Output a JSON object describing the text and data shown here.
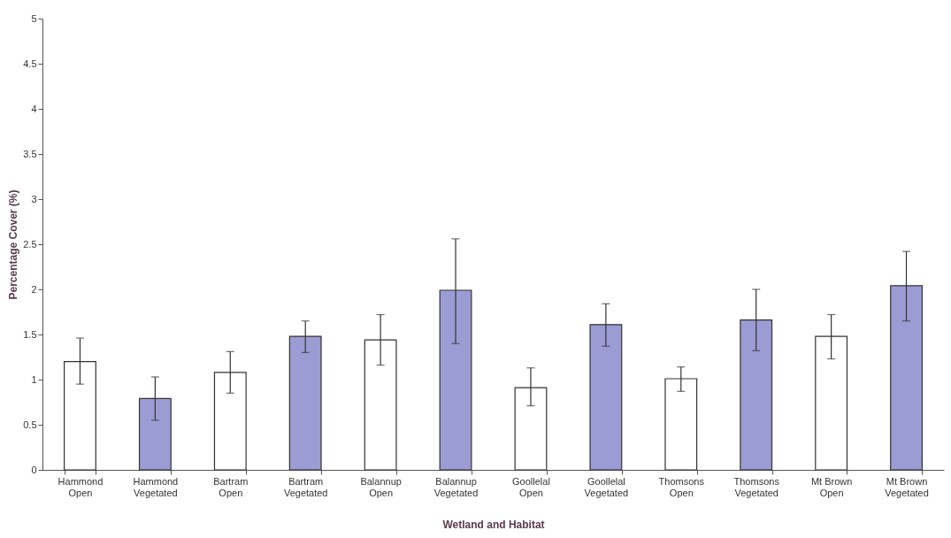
{
  "chart_data": {
    "type": "bar",
    "xlabel": "Wetland and Habitat",
    "ylabel": "Percentage Cover (%)",
    "categories": [
      "Hammond Open",
      "Hammond Vegetated",
      "Bartram Open",
      "Bartram Vegetated",
      "Balannup Open",
      "Balannup Vegetated",
      "Goollelal Open",
      "Goollelal Vegetated",
      "Thomsons Open",
      "Thomsons Vegetated",
      "Mt Brown Open",
      "Mt Brown Vegetated"
    ],
    "values": [
      1.2,
      0.79,
      1.08,
      1.48,
      1.44,
      1.99,
      0.91,
      1.61,
      1.01,
      1.66,
      1.48,
      2.04
    ],
    "errors": [
      [
        0.95,
        1.46
      ],
      [
        0.55,
        1.03
      ],
      [
        0.85,
        1.31
      ],
      [
        1.3,
        1.65
      ],
      [
        1.16,
        1.72
      ],
      [
        1.4,
        2.56
      ],
      [
        0.71,
        1.13
      ],
      [
        1.37,
        1.84
      ],
      [
        0.87,
        1.14
      ],
      [
        1.32,
        2.0
      ],
      [
        1.23,
        1.72
      ],
      [
        1.65,
        2.42
      ]
    ],
    "colors": [
      "#ffffff",
      "#9c9cd4",
      "#ffffff",
      "#9c9cd4",
      "#ffffff",
      "#9c9cd4",
      "#ffffff",
      "#9c9cd4",
      "#ffffff",
      "#9c9cd4",
      "#ffffff",
      "#9c9cd4"
    ],
    "ylim": [
      0,
      5
    ],
    "yticks": [
      0,
      0.5,
      1,
      1.5,
      2,
      2.5,
      3,
      3.5,
      4,
      4.5,
      5
    ],
    "grid": false
  }
}
